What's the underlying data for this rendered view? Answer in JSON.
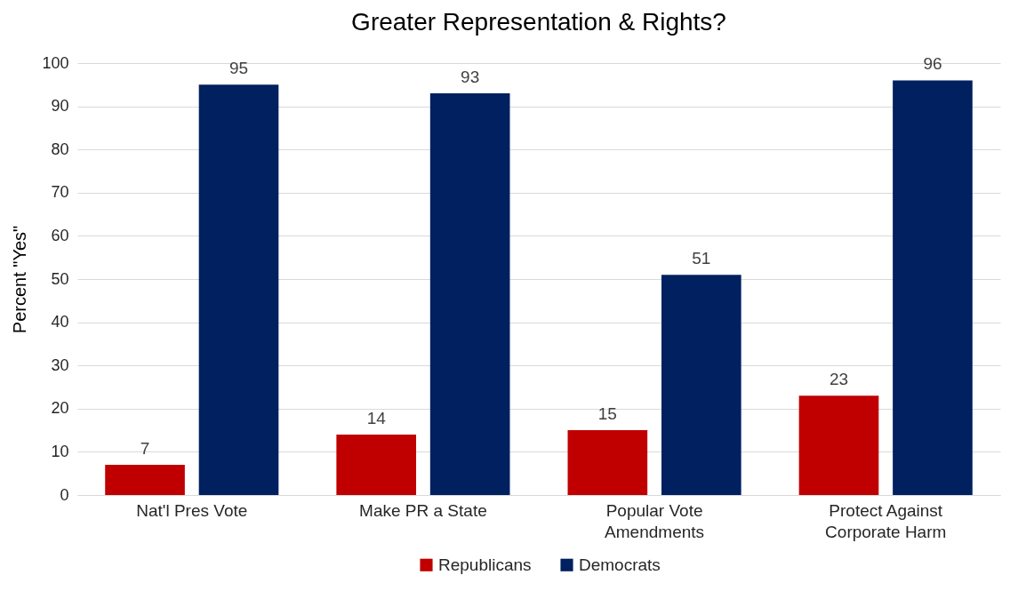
{
  "chart_data": {
    "type": "bar",
    "title": "Greater Representation & Rights?",
    "ylabel": "Percent \"Yes\"",
    "categories": [
      "Nat'l Pres Vote",
      "Make PR a State",
      "Popular Vote Amendments",
      "Protect Against Corporate Harm"
    ],
    "series": [
      {
        "name": "Republicans",
        "color": "#c00000",
        "values": [
          7,
          14,
          15,
          23
        ]
      },
      {
        "name": "Democrats",
        "color": "#002060",
        "values": [
          95,
          93,
          51,
          96
        ]
      }
    ],
    "ylim": [
      0,
      100
    ],
    "yticks": [
      0,
      10,
      20,
      30,
      40,
      50,
      60,
      70,
      80,
      90,
      100
    ],
    "grid": "y",
    "legend": "bottom",
    "data_labels": true
  }
}
